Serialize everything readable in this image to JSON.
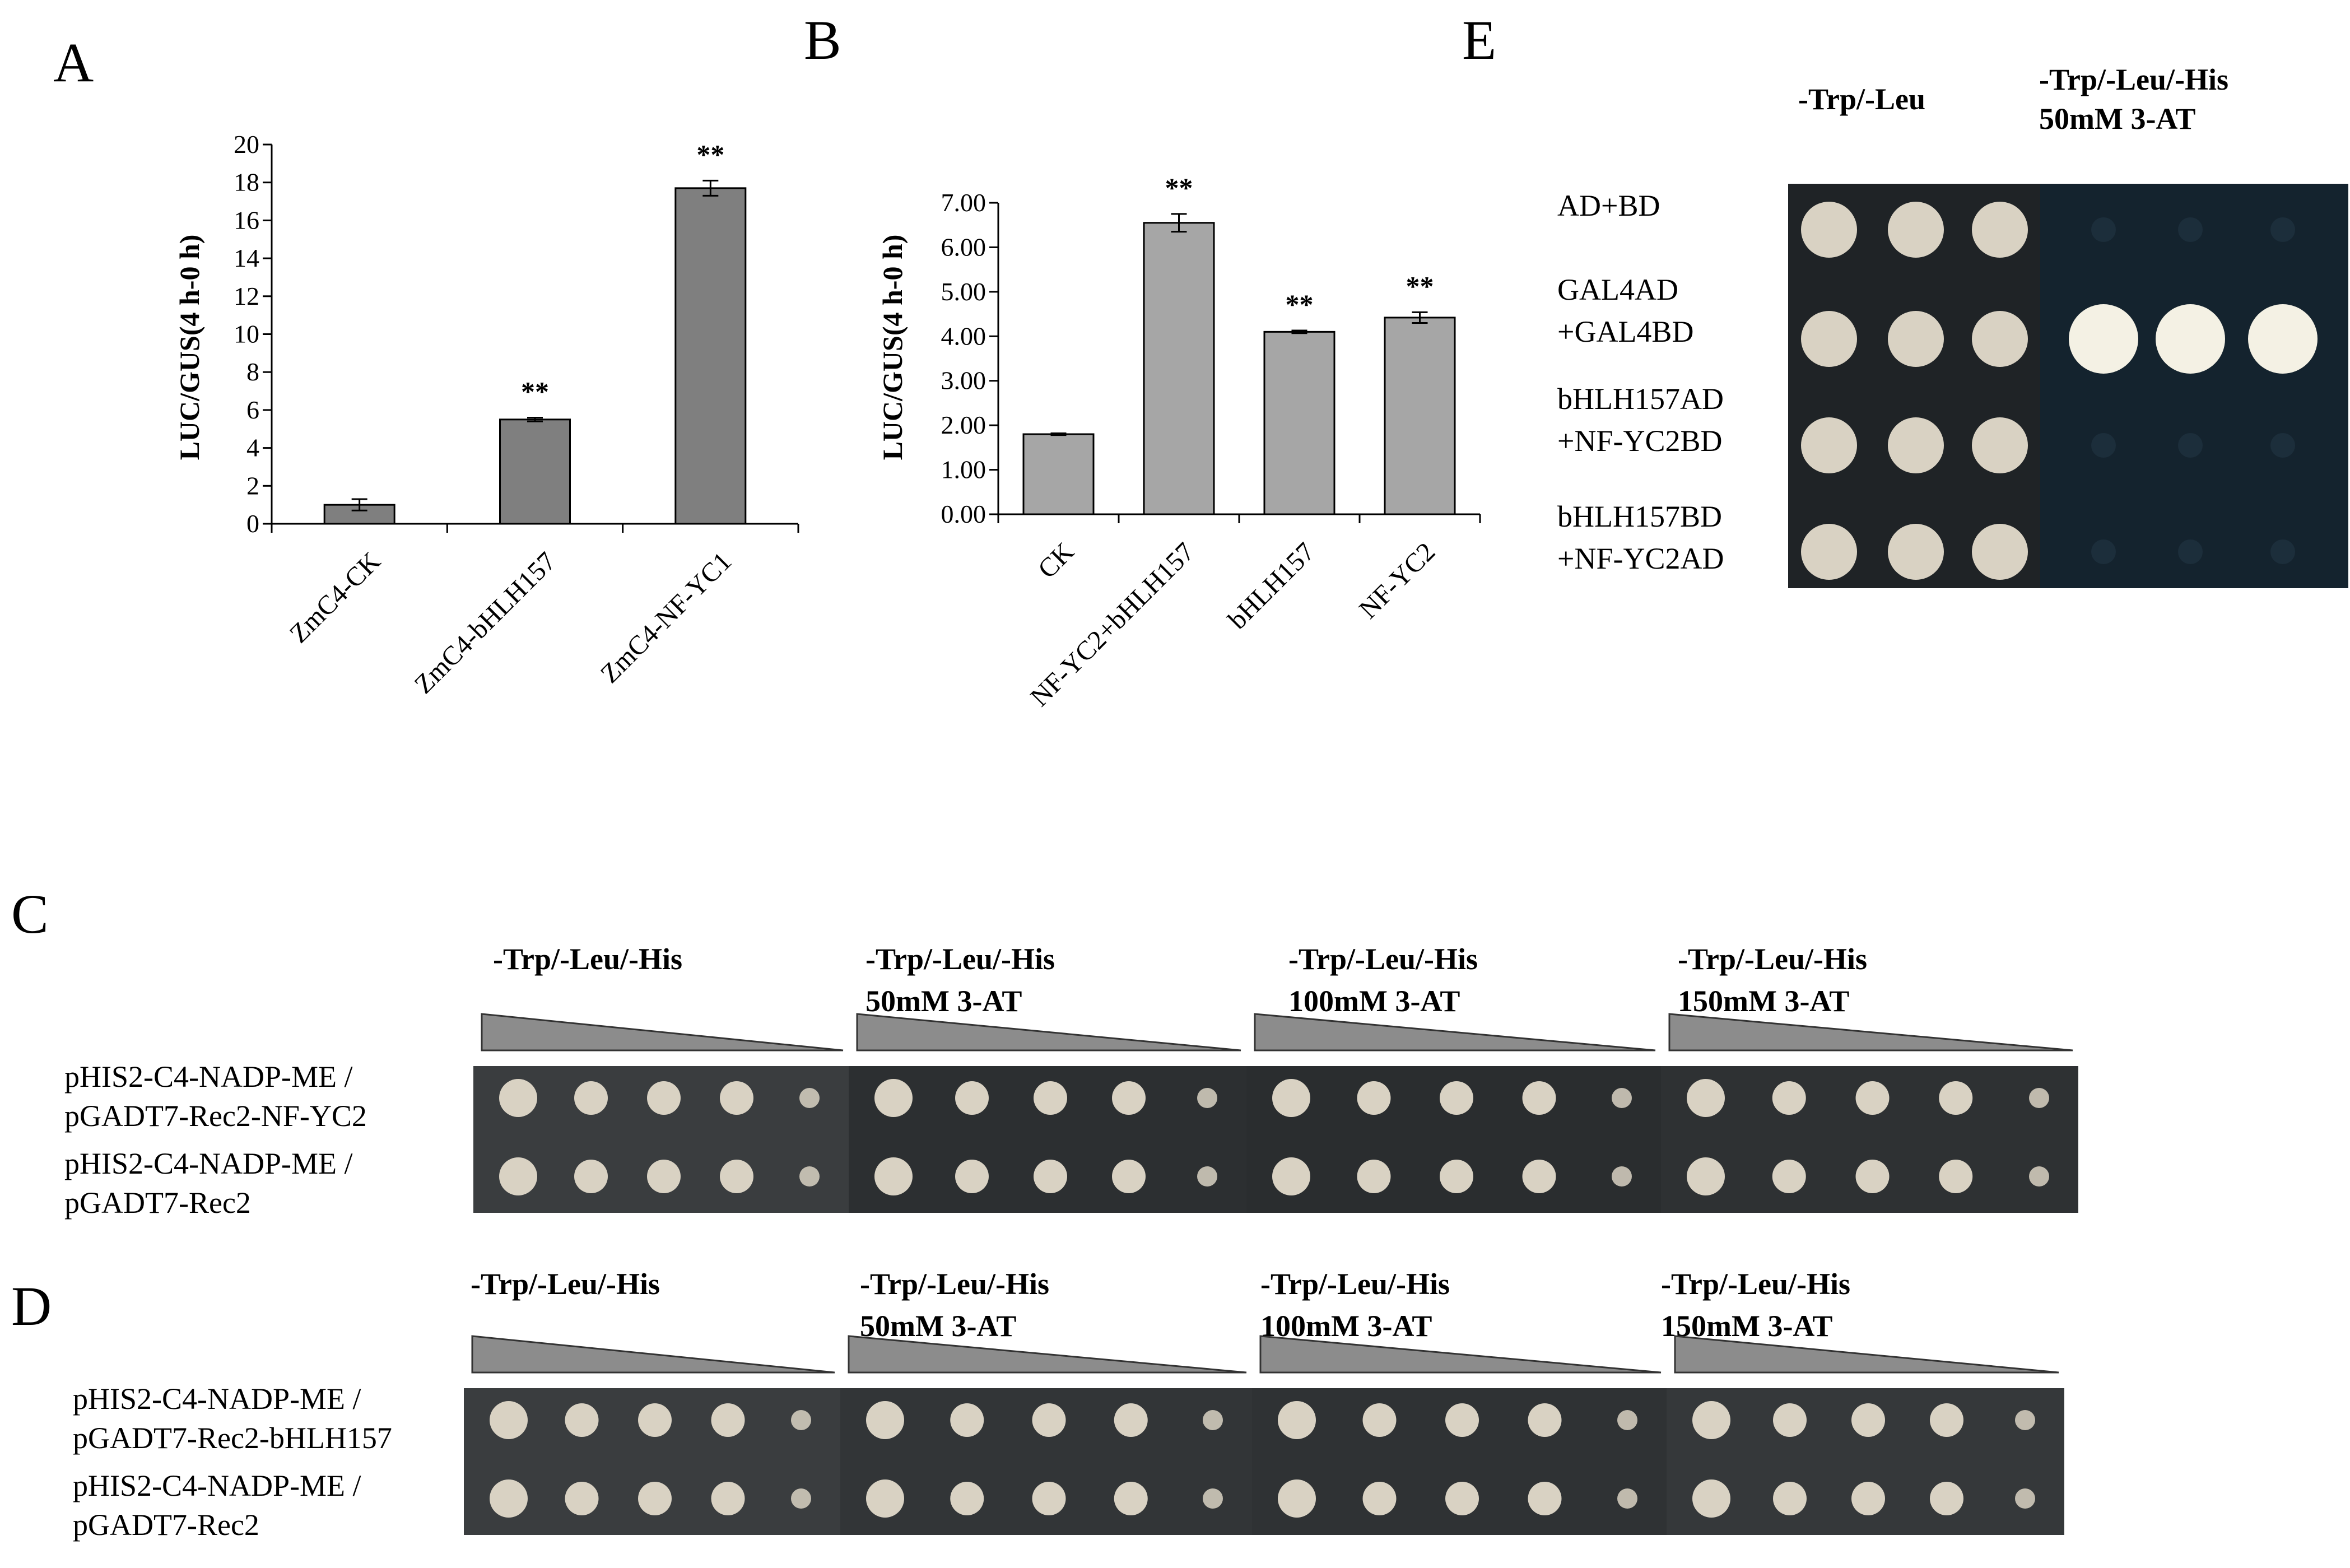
{
  "panels": {
    "A": "A",
    "B": "B",
    "C": "C",
    "D": "D",
    "E": "E"
  },
  "colors": {
    "bar_A": "#7f7f7f",
    "bar_B": "#a6a6a6",
    "plate_dark": "#2f3334",
    "plate_E_right": "#14232e",
    "colony": "#d9d2c3",
    "colony_strong": "#f4f1e4"
  },
  "chart_data": [
    {
      "type": "bar",
      "panel": "A",
      "ylabel": "LUC/GUS(4 h-0 h)",
      "ylim": [
        0,
        20
      ],
      "yticks": [
        "0",
        "2",
        "4",
        "6",
        "8",
        "10",
        "12",
        "14",
        "16",
        "18",
        "20"
      ],
      "categories": [
        "ZmC4-CK",
        "ZmC4-bHLH157",
        "ZmC4-NF-YC1"
      ],
      "values": [
        1.0,
        5.5,
        17.7
      ],
      "errors": [
        0.3,
        0.1,
        0.4
      ],
      "annotations": [
        "",
        "**",
        "**"
      ],
      "grid": false,
      "legend": "none"
    },
    {
      "type": "bar",
      "panel": "B",
      "ylabel": "LUC/GUS(4 h-0 h)",
      "ylim": [
        0,
        7
      ],
      "yticks": [
        "0.00",
        "1.00",
        "2.00",
        "3.00",
        "4.00",
        "5.00",
        "6.00",
        "7.00"
      ],
      "categories": [
        "CK",
        "NF-YC2+bHLH157",
        "bHLH157",
        "NF-YC2"
      ],
      "values": [
        1.8,
        6.55,
        4.1,
        4.42
      ],
      "errors": [
        0.02,
        0.2,
        0.03,
        0.12
      ],
      "annotations": [
        "",
        "**",
        "**",
        "**"
      ],
      "grid": false,
      "legend": "none"
    }
  ],
  "panel_E": {
    "conditions": [
      "-Trp/-Leu",
      "-Trp/-Leu/-His",
      "50mM 3-AT"
    ],
    "rows": [
      {
        "line1": "AD+BD",
        "line2": "",
        "left": 1,
        "right": 0
      },
      {
        "line1": "GAL4AD",
        "line2": "+GAL4BD",
        "left": 1,
        "right": 1
      },
      {
        "line1": "bHLH157AD",
        "line2": "+NF-YC2BD",
        "left": 1,
        "right": 0
      },
      {
        "line1": "bHLH157BD",
        "line2": "+NF-YC2AD",
        "left": 1,
        "right": 0
      }
    ]
  },
  "panel_C": {
    "conditions": [
      {
        "line1": "-Trp/-Leu/-His",
        "line2": ""
      },
      {
        "line1": "-Trp/-Leu/-His",
        "line2": "50mM 3-AT"
      },
      {
        "line1": "-Trp/-Leu/-His",
        "line2": "100mM 3-AT"
      },
      {
        "line1": "-Trp/-Leu/-His",
        "line2": "150mM 3-AT"
      }
    ],
    "rows": [
      {
        "line1": "pHIS2-C4-NADP-ME /",
        "line2": "pGADT7-Rec2-NF-YC2"
      },
      {
        "line1": "pHIS2-C4-NADP-ME /",
        "line2": "pGADT7-Rec2"
      }
    ]
  },
  "panel_D": {
    "conditions": [
      {
        "line1": "-Trp/-Leu/-His",
        "line2": ""
      },
      {
        "line1": "-Trp/-Leu/-His",
        "line2": "50mM 3-AT"
      },
      {
        "line1": "-Trp/-Leu/-His",
        "line2": "100mM 3-AT"
      },
      {
        "line1": "-Trp/-Leu/-His",
        "line2": "150mM 3-AT"
      }
    ],
    "rows": [
      {
        "line1": "pHIS2-C4-NADP-ME /",
        "line2": "pGADT7-Rec2-bHLH157"
      },
      {
        "line1": "pHIS2-C4-NADP-ME /",
        "line2": "pGADT7-Rec2"
      }
    ]
  }
}
